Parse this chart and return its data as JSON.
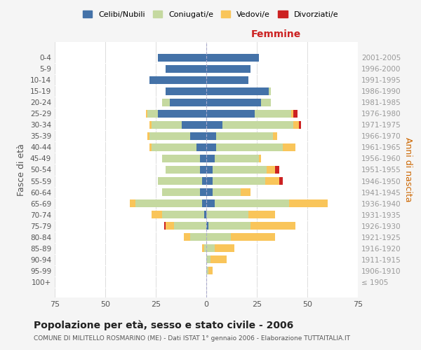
{
  "age_groups": [
    "100+",
    "95-99",
    "90-94",
    "85-89",
    "80-84",
    "75-79",
    "70-74",
    "65-69",
    "60-64",
    "55-59",
    "50-54",
    "45-49",
    "40-44",
    "35-39",
    "30-34",
    "25-29",
    "20-24",
    "15-19",
    "10-14",
    "5-9",
    "0-4"
  ],
  "birth_years": [
    "≤ 1905",
    "1906-1910",
    "1911-1915",
    "1916-1920",
    "1921-1925",
    "1926-1930",
    "1931-1935",
    "1936-1940",
    "1941-1945",
    "1946-1950",
    "1951-1955",
    "1956-1960",
    "1961-1965",
    "1966-1970",
    "1971-1975",
    "1976-1980",
    "1981-1985",
    "1986-1990",
    "1991-1995",
    "1996-2000",
    "2001-2005"
  ],
  "male": {
    "celibi": [
      0,
      0,
      0,
      0,
      0,
      0,
      1,
      2,
      3,
      2,
      3,
      3,
      5,
      8,
      12,
      24,
      18,
      20,
      28,
      20,
      24
    ],
    "coniugati": [
      0,
      0,
      0,
      1,
      8,
      16,
      21,
      33,
      19,
      22,
      17,
      19,
      22,
      20,
      15,
      5,
      4,
      0,
      0,
      0,
      0
    ],
    "vedovi": [
      0,
      0,
      0,
      1,
      3,
      4,
      5,
      3,
      0,
      0,
      0,
      0,
      1,
      1,
      1,
      1,
      0,
      0,
      0,
      0,
      0
    ],
    "divorziati": [
      0,
      0,
      0,
      0,
      0,
      1,
      0,
      0,
      0,
      0,
      0,
      0,
      0,
      0,
      0,
      0,
      0,
      0,
      0,
      0,
      0
    ]
  },
  "female": {
    "nubili": [
      0,
      0,
      0,
      0,
      0,
      1,
      0,
      4,
      3,
      3,
      3,
      4,
      5,
      5,
      8,
      24,
      27,
      31,
      21,
      22,
      26
    ],
    "coniugate": [
      0,
      1,
      2,
      4,
      12,
      21,
      21,
      37,
      14,
      26,
      27,
      22,
      33,
      28,
      35,
      18,
      5,
      1,
      0,
      0,
      0
    ],
    "vedove": [
      0,
      2,
      8,
      10,
      22,
      22,
      13,
      19,
      5,
      7,
      4,
      1,
      6,
      2,
      3,
      1,
      0,
      0,
      0,
      0,
      0
    ],
    "divorziate": [
      0,
      0,
      0,
      0,
      0,
      0,
      0,
      0,
      0,
      2,
      2,
      0,
      0,
      0,
      1,
      2,
      0,
      0,
      0,
      0,
      0
    ]
  },
  "color_celibi": "#4472a8",
  "color_coniugati": "#c5d9a0",
  "color_vedovi": "#f9c55a",
  "color_divorziati": "#cc2222",
  "title": "Popolazione per età, sesso e stato civile - 2006",
  "subtitle": "COMUNE DI MILITELLO ROSMARINO (ME) - Dati ISTAT 1° gennaio 2006 - Elaborazione TUTTAITALIA.IT",
  "xlabel_right": "Femmine",
  "ylabel_left": "Fasce di età",
  "ylabel_right": "Anni di nascita",
  "xlim": 75,
  "bg_color": "#f5f5f5",
  "plot_bg": "#ffffff",
  "grid_color": "#dddddd"
}
